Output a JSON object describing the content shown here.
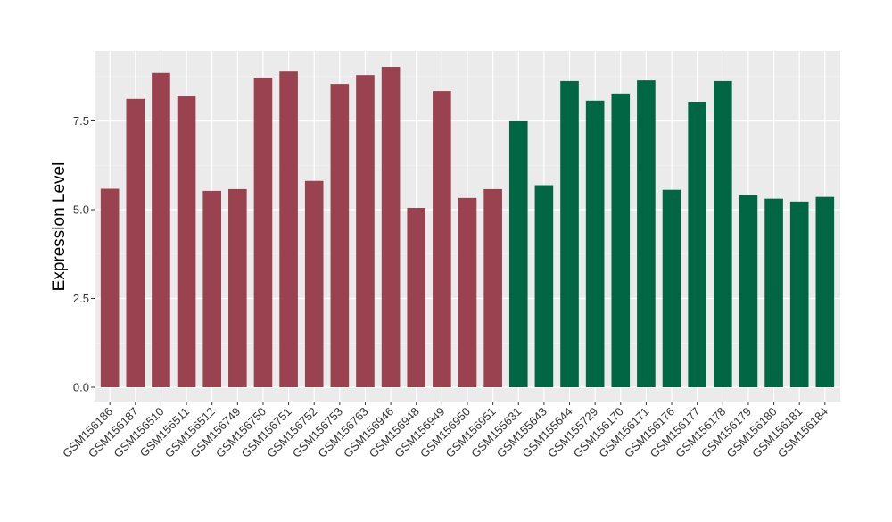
{
  "chart_data": {
    "type": "bar",
    "title": "",
    "xlabel": "",
    "ylabel": "Expression Level",
    "ylim": [
      -0.4,
      9.47
    ],
    "yticks": [
      0,
      2.5,
      5,
      7.5
    ],
    "ytick_labels": [
      "0.0",
      "2.5",
      "5.0",
      "7.5"
    ],
    "grid": true,
    "categories": [
      "GSM156186",
      "GSM156187",
      "GSM156510",
      "GSM156511",
      "GSM156512",
      "GSM156749",
      "GSM156750",
      "GSM156751",
      "GSM156752",
      "GSM156753",
      "GSM156763",
      "GSM156946",
      "GSM156948",
      "GSM156949",
      "GSM156950",
      "GSM156951",
      "GSM155631",
      "GSM155643",
      "GSM155644",
      "GSM155729",
      "GSM156170",
      "GSM156171",
      "GSM156176",
      "GSM156177",
      "GSM156178",
      "GSM156179",
      "GSM156180",
      "GSM156181",
      "GSM156184"
    ],
    "values": [
      5.59,
      8.12,
      8.85,
      8.19,
      5.53,
      5.58,
      8.72,
      8.89,
      5.81,
      8.54,
      8.79,
      9.02,
      5.05,
      8.34,
      5.33,
      5.58,
      7.49,
      5.69,
      8.62,
      8.07,
      8.27,
      8.64,
      5.56,
      8.04,
      8.62,
      5.41,
      5.31,
      5.23,
      5.36
    ],
    "groups": [
      "a",
      "a",
      "a",
      "a",
      "a",
      "a",
      "a",
      "a",
      "a",
      "a",
      "a",
      "a",
      "a",
      "a",
      "a",
      "a",
      "b",
      "b",
      "b",
      "b",
      "b",
      "b",
      "b",
      "b",
      "b",
      "b",
      "b",
      "b",
      "b"
    ],
    "group_colors": {
      "a": "#9A4250",
      "b": "#006643"
    }
  }
}
